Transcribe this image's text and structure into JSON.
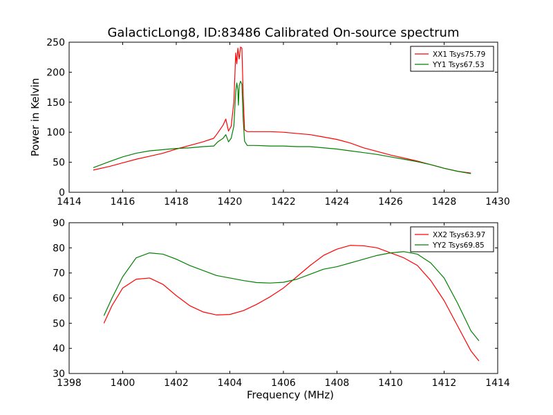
{
  "title": "GalacticLong8, ID:83486 Calibrated On-source spectrum",
  "colors": {
    "xx": "#ff0000",
    "yy": "#008000",
    "axis": "#000000",
    "background": "#ffffff"
  },
  "chart_data": [
    {
      "type": "line",
      "title": "GalacticLong8, ID:83486 Calibrated On-source spectrum",
      "xlabel": "",
      "ylabel": "Power in Kelvin",
      "xlim": [
        1414,
        1430
      ],
      "ylim": [
        0,
        250
      ],
      "xticks": [
        "1414",
        "1416",
        "1418",
        "1420",
        "1422",
        "1424",
        "1426",
        "1428",
        "1430"
      ],
      "yticks": [
        "0",
        "50",
        "100",
        "150",
        "200",
        "250"
      ],
      "grid": false,
      "legend": "top-right",
      "series": [
        {
          "name": "XX1 Tsys75.79",
          "color": "#ff0000",
          "points": [
            [
              1414.9,
              37
            ],
            [
              1415.5,
              43
            ],
            [
              1416.0,
              49
            ],
            [
              1416.5,
              55
            ],
            [
              1417.0,
              60
            ],
            [
              1417.5,
              65
            ],
            [
              1418.0,
              72
            ],
            [
              1418.5,
              78
            ],
            [
              1419.0,
              84
            ],
            [
              1419.4,
              90
            ],
            [
              1419.55,
              99
            ],
            [
              1419.75,
              112
            ],
            [
              1419.85,
              122
            ],
            [
              1419.95,
              102
            ],
            [
              1420.05,
              110
            ],
            [
              1420.15,
              150
            ],
            [
              1420.22,
              232
            ],
            [
              1420.26,
              214
            ],
            [
              1420.3,
              240
            ],
            [
              1420.35,
              222
            ],
            [
              1420.4,
              242
            ],
            [
              1420.45,
              240
            ],
            [
              1420.5,
              160
            ],
            [
              1420.55,
              104
            ],
            [
              1420.65,
              101
            ],
            [
              1421.0,
              101
            ],
            [
              1421.5,
              101
            ],
            [
              1422.0,
              100
            ],
            [
              1422.5,
              98
            ],
            [
              1423.0,
              96
            ],
            [
              1423.5,
              92
            ],
            [
              1424.0,
              88
            ],
            [
              1424.5,
              82
            ],
            [
              1425.0,
              74
            ],
            [
              1425.5,
              68
            ],
            [
              1426.0,
              62
            ],
            [
              1426.5,
              57
            ],
            [
              1427.0,
              52
            ],
            [
              1427.5,
              46
            ],
            [
              1428.0,
              40
            ],
            [
              1428.5,
              35
            ],
            [
              1429.0,
              32
            ]
          ]
        },
        {
          "name": "YY1 Tsys67.53",
          "color": "#008000",
          "points": [
            [
              1414.9,
              41
            ],
            [
              1415.5,
              51
            ],
            [
              1416.0,
              59
            ],
            [
              1416.5,
              65
            ],
            [
              1417.0,
              69
            ],
            [
              1417.5,
              71
            ],
            [
              1418.0,
              73
            ],
            [
              1418.5,
              74
            ],
            [
              1419.0,
              76
            ],
            [
              1419.4,
              77
            ],
            [
              1419.55,
              84
            ],
            [
              1419.75,
              90
            ],
            [
              1419.85,
              96
            ],
            [
              1419.95,
              84
            ],
            [
              1420.05,
              90
            ],
            [
              1420.15,
              110
            ],
            [
              1420.22,
              168
            ],
            [
              1420.26,
              182
            ],
            [
              1420.3,
              170
            ],
            [
              1420.32,
              145
            ],
            [
              1420.35,
              178
            ],
            [
              1420.4,
              185
            ],
            [
              1420.45,
              180
            ],
            [
              1420.5,
              120
            ],
            [
              1420.55,
              85
            ],
            [
              1420.65,
              78
            ],
            [
              1421.0,
              78
            ],
            [
              1421.5,
              77
            ],
            [
              1422.0,
              77
            ],
            [
              1422.5,
              76
            ],
            [
              1423.0,
              76
            ],
            [
              1423.5,
              74
            ],
            [
              1424.0,
              72
            ],
            [
              1424.5,
              69
            ],
            [
              1425.0,
              66
            ],
            [
              1425.5,
              63
            ],
            [
              1426.0,
              59
            ],
            [
              1426.5,
              55
            ],
            [
              1427.0,
              51
            ],
            [
              1427.5,
              46
            ],
            [
              1428.0,
              40
            ],
            [
              1428.5,
              35
            ],
            [
              1429.0,
              31
            ]
          ]
        }
      ]
    },
    {
      "type": "line",
      "title": "",
      "xlabel": "Frequency (MHz)",
      "ylabel": "",
      "xlim": [
        1398,
        1414
      ],
      "ylim": [
        30,
        90
      ],
      "xticks": [
        "1398",
        "1400",
        "1402",
        "1404",
        "1406",
        "1408",
        "1410",
        "1412",
        "1414"
      ],
      "yticks": [
        "30",
        "40",
        "50",
        "60",
        "70",
        "80",
        "90"
      ],
      "grid": false,
      "legend": "top-right",
      "series": [
        {
          "name": "XX2 Tsys63.97",
          "color": "#ff0000",
          "points": [
            [
              1399.3,
              50
            ],
            [
              1399.6,
              57
            ],
            [
              1400.0,
              64
            ],
            [
              1400.5,
              67.5
            ],
            [
              1401.0,
              68
            ],
            [
              1401.5,
              65.5
            ],
            [
              1402.0,
              61
            ],
            [
              1402.5,
              57
            ],
            [
              1403.0,
              54.5
            ],
            [
              1403.5,
              53.3
            ],
            [
              1404.0,
              53.5
            ],
            [
              1404.5,
              55
            ],
            [
              1405.0,
              57.5
            ],
            [
              1405.5,
              60.5
            ],
            [
              1406.0,
              64
            ],
            [
              1406.5,
              68.5
            ],
            [
              1407.0,
              73
            ],
            [
              1407.5,
              77
            ],
            [
              1408.0,
              79.5
            ],
            [
              1408.5,
              81
            ],
            [
              1409.0,
              80.8
            ],
            [
              1409.5,
              80
            ],
            [
              1410.0,
              78
            ],
            [
              1410.5,
              76
            ],
            [
              1411.0,
              73
            ],
            [
              1411.5,
              67
            ],
            [
              1412.0,
              59
            ],
            [
              1412.5,
              49
            ],
            [
              1413.0,
              39
            ],
            [
              1413.3,
              35
            ]
          ]
        },
        {
          "name": "YY2 Tsys69.85",
          "color": "#008000",
          "points": [
            [
              1399.3,
              53
            ],
            [
              1399.6,
              60
            ],
            [
              1400.0,
              68.5
            ],
            [
              1400.5,
              76
            ],
            [
              1401.0,
              78
            ],
            [
              1401.5,
              77.5
            ],
            [
              1402.0,
              75.5
            ],
            [
              1402.5,
              73
            ],
            [
              1403.0,
              71
            ],
            [
              1403.5,
              69
            ],
            [
              1404.0,
              68
            ],
            [
              1404.5,
              67
            ],
            [
              1405.0,
              66.2
            ],
            [
              1405.5,
              66
            ],
            [
              1406.0,
              66.3
            ],
            [
              1406.5,
              67.5
            ],
            [
              1407.0,
              69.5
            ],
            [
              1407.5,
              71.5
            ],
            [
              1408.0,
              72.5
            ],
            [
              1408.5,
              74
            ],
            [
              1409.0,
              75.5
            ],
            [
              1409.5,
              77
            ],
            [
              1410.0,
              78
            ],
            [
              1410.5,
              78.5
            ],
            [
              1411.0,
              77.5
            ],
            [
              1411.5,
              74
            ],
            [
              1412.0,
              68
            ],
            [
              1412.5,
              58
            ],
            [
              1413.0,
              47
            ],
            [
              1413.3,
              43
            ]
          ]
        }
      ]
    }
  ]
}
